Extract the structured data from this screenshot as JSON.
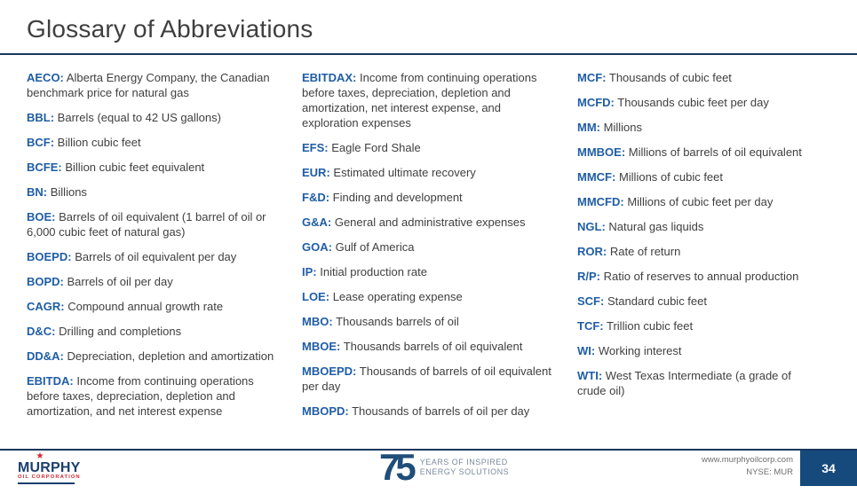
{
  "slide": {
    "title": "Glossary of Abbreviations",
    "page_number": "34"
  },
  "glossary": {
    "columns": [
      {
        "entries": [
          {
            "term": "AECO:",
            "definition": "Alberta Energy Company, the Canadian\nbenchmark price for natural gas"
          },
          {
            "term": "BBL:",
            "definition": "Barrels (equal to 42 US gallons)"
          },
          {
            "term": "BCF:",
            "definition": "Billion cubic feet"
          },
          {
            "term": "BCFE:",
            "definition": "Billion cubic feet equivalent"
          },
          {
            "term": "BN:",
            "definition": "Billions"
          },
          {
            "term": "BOE:",
            "definition": "Barrels of oil equivalent (1 barrel of oil or\n6,000 cubic feet of natural gas)"
          },
          {
            "term": "BOEPD:",
            "definition": "Barrels of oil equivalent per day"
          },
          {
            "term": "BOPD:",
            "definition": "Barrels of oil per day"
          },
          {
            "term": "CAGR:",
            "definition": "Compound annual growth rate"
          },
          {
            "term": "D&C:",
            "definition": "Drilling and completions"
          },
          {
            "term": "DD&A:",
            "definition": "Depreciation, depletion and amortization"
          },
          {
            "term": "EBITDA:",
            "definition": "Income from continuing operations\nbefore taxes, depreciation, depletion and\namortization, and net interest expense"
          }
        ]
      },
      {
        "entries": [
          {
            "term": "EBITDAX:",
            "definition": "Income from continuing operations\nbefore taxes, depreciation, depletion and\namortization, net interest expense, and\nexploration expenses"
          },
          {
            "term": "EFS:",
            "definition": "Eagle Ford Shale"
          },
          {
            "term": "EUR:",
            "definition": "Estimated ultimate recovery"
          },
          {
            "term": "F&D:",
            "definition": "Finding and development"
          },
          {
            "term": "G&A:",
            "definition": "General and administrative expenses"
          },
          {
            "term": "GOA:",
            "definition": "Gulf of America"
          },
          {
            "term": "IP:",
            "definition": "Initial production rate"
          },
          {
            "term": "LOE:",
            "definition": "Lease operating expense"
          },
          {
            "term": "MBO:",
            "definition": "Thousands barrels of oil"
          },
          {
            "term": "MBOE:",
            "definition": "Thousands barrels of oil equivalent"
          },
          {
            "term": "MBOEPD:",
            "definition": "Thousands of barrels of oil equivalent\nper day"
          },
          {
            "term": "MBOPD:",
            "definition": "Thousands of barrels of oil per day"
          }
        ]
      },
      {
        "entries": [
          {
            "term": "MCF:",
            "definition": "Thousands of cubic feet"
          },
          {
            "term": "MCFD:",
            "definition": "Thousands cubic feet per day"
          },
          {
            "term": "MM:",
            "definition": "Millions"
          },
          {
            "term": "MMBOE:",
            "definition": "Millions of barrels of oil equivalent"
          },
          {
            "term": "MMCF:",
            "definition": "Millions of cubic feet"
          },
          {
            "term": "MMCFD:",
            "definition": "Millions of cubic feet per day"
          },
          {
            "term": "NGL:",
            "definition": "Natural gas liquids"
          },
          {
            "term": "ROR:",
            "definition": "Rate of return"
          },
          {
            "term": "R/P:",
            "definition": "Ratio of reserves to annual production"
          },
          {
            "term": "SCF:",
            "definition": "Standard cubic feet"
          },
          {
            "term": "TCF:",
            "definition": "Trillion cubic feet"
          },
          {
            "term": "WI:",
            "definition": "Working interest"
          },
          {
            "term": "WTI:",
            "definition": "West Texas Intermediate (a grade of\ncrude oil)"
          }
        ]
      }
    ]
  },
  "footer": {
    "logo": {
      "star_icon": "★",
      "name": "MURPHY",
      "subtitle": "OIL CORPORATION"
    },
    "anniversary": {
      "number": "75",
      "line1": "YEARS OF INSPIRED",
      "line2": "ENERGY SOLUTIONS"
    },
    "website": "www.murphyoilcorp.com",
    "ticker": "NYSE: MUR"
  },
  "colors": {
    "term_blue": "#1f5da6",
    "body_text": "#3f3f3f",
    "rule_navy": "#17375e",
    "page_box_navy": "#174a7c",
    "murphy_navy": "#1b3e6f",
    "murphy_red": "#d22630",
    "anniversary_navy": "#1f4e79",
    "anniversary_gray": "#7b8b9e"
  }
}
